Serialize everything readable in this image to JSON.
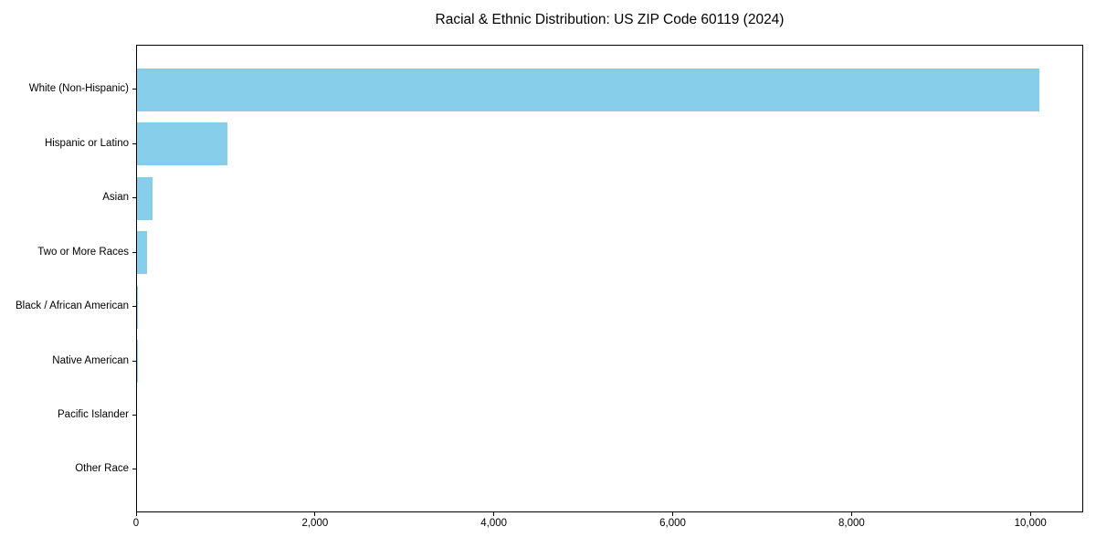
{
  "chart_data": {
    "type": "bar",
    "orientation": "horizontal",
    "title": "Racial & Ethnic Distribution: US ZIP Code 60119 (2024)",
    "categories": [
      "White (Non-Hispanic)",
      "Hispanic or Latino",
      "Asian",
      "Two or More Races",
      "Black / African American",
      "Native American",
      "Pacific Islander",
      "Other Race"
    ],
    "values": [
      10090,
      1010,
      170,
      110,
      10,
      5,
      0,
      0
    ],
    "xlabel": "",
    "ylabel": "",
    "xlim": [
      0,
      10590
    ],
    "xticks": {
      "values": [
        0,
        2000,
        4000,
        6000,
        8000,
        10000
      ],
      "labels": [
        "0",
        "2,000",
        "4,000",
        "6,000",
        "8,000",
        "10,000"
      ]
    },
    "bar_color": "#87CEEB",
    "background_color": "#ffffff",
    "axis_color": "#000000",
    "grid": "off",
    "legend": "none"
  }
}
